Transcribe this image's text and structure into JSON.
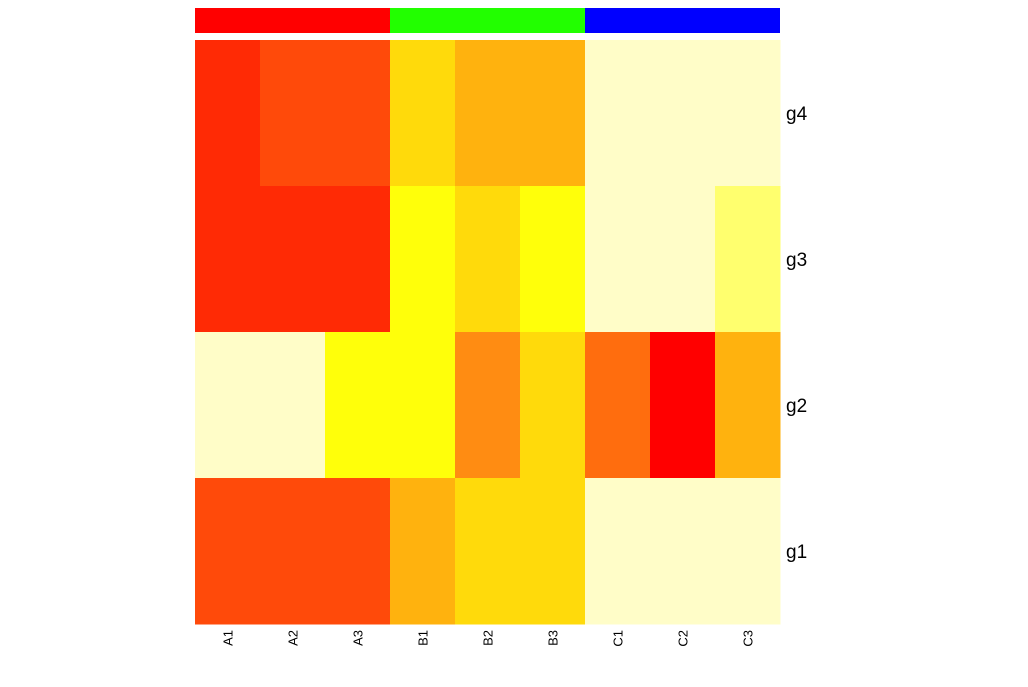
{
  "chart_data": {
    "type": "heatmap",
    "columns": [
      "A1",
      "A2",
      "A3",
      "B1",
      "B2",
      "B3",
      "C1",
      "C2",
      "C3"
    ],
    "rows": [
      "g4",
      "g3",
      "g2",
      "g1"
    ],
    "column_groups": [
      {
        "color": "#ff0000",
        "columns": [
          "A1",
          "A2",
          "A3"
        ]
      },
      {
        "color": "#22ff00",
        "columns": [
          "B1",
          "B2",
          "B3"
        ]
      },
      {
        "color": "#0000ff",
        "columns": [
          "C1",
          "C2",
          "C3"
        ]
      }
    ],
    "palette": [
      "#ff0000",
      "#ff2a05",
      "#ff4a0a",
      "#ff6d0e",
      "#ff8c12",
      "#ffb20e",
      "#ffda0b",
      "#ffff0a",
      "#ffff6e",
      "#fffdc8"
    ],
    "values": [
      [
        1,
        2,
        2,
        6,
        5,
        5,
        9,
        9,
        9
      ],
      [
        1,
        1,
        1,
        7,
        6,
        7,
        9,
        9,
        8
      ],
      [
        9,
        9,
        7,
        7,
        4,
        6,
        3,
        0,
        5
      ],
      [
        2,
        2,
        2,
        5,
        6,
        6,
        9,
        9,
        9
      ]
    ]
  }
}
